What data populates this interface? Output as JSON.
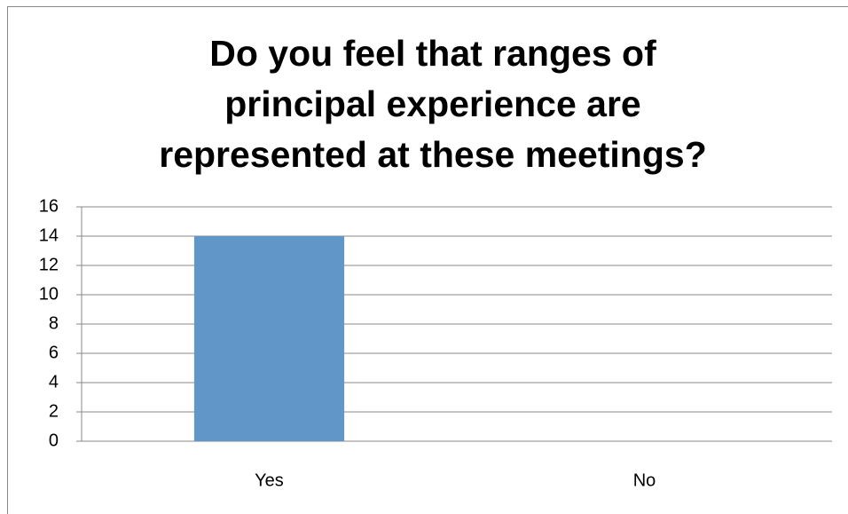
{
  "chart_data": {
    "type": "bar",
    "title": [
      "Do you feel that ranges of",
      "principal experience are",
      "represented at these meetings?"
    ],
    "categories": [
      "Yes",
      "No"
    ],
    "values": [
      14,
      0
    ],
    "color": "#6096c8",
    "ylim": [
      0,
      16
    ],
    "yticks": [
      0,
      2,
      4,
      6,
      8,
      10,
      12,
      14,
      16
    ],
    "grid": true
  }
}
